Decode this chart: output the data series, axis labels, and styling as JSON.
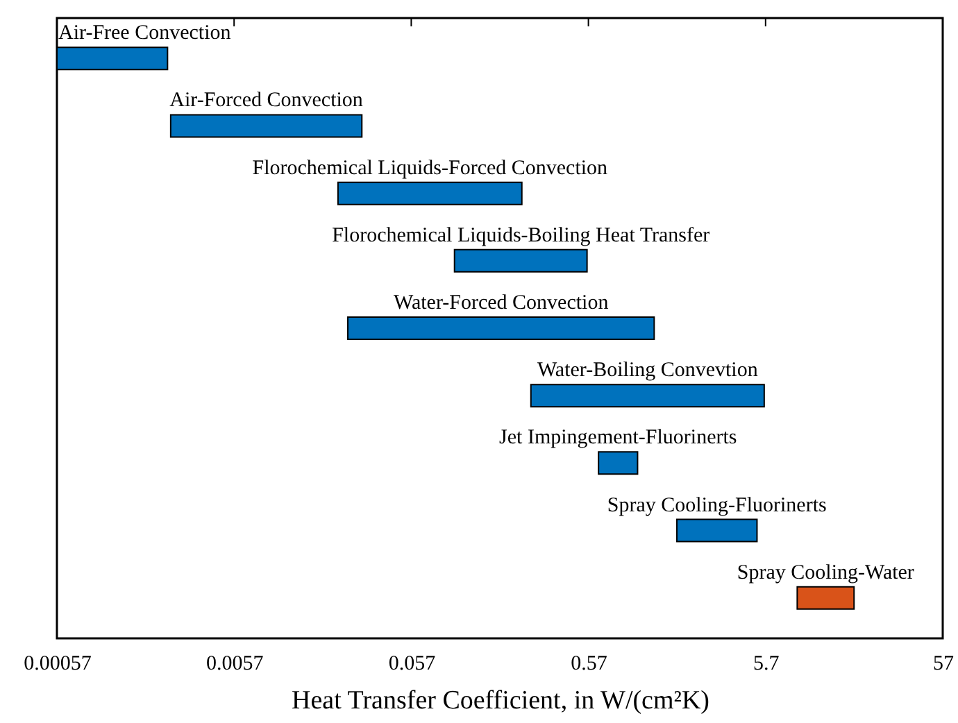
{
  "chart_data": {
    "type": "bar",
    "orientation": "horizontal",
    "xlabel": "Heat Transfer Coefficient, in W/(cm²K)",
    "categories": [
      "Air-Free Convection",
      "Air-Forced Convection",
      "Florochemical Liquids-Forced Convection",
      "Florochemical Liquids-Boiling Heat Transfer",
      "Water-Forced Convection",
      "Water-Boiling Convevtion",
      "Jet Impingement-Fluorinerts",
      "Spray Cooling-Fluorinerts",
      "Spray Cooling-Water"
    ],
    "base": [
      0.00057,
      0.0025,
      0.022,
      0.1,
      0.025,
      0.27,
      0.65,
      1.8,
      8.6
    ],
    "values": [
      0.00183,
      0.0275,
      0.218,
      0.46,
      1.315,
      5.33,
      0.43,
      3.3,
      9.4
    ],
    "colors": [
      "#0072bd",
      "#0072bd",
      "#0072bd",
      "#0072bd",
      "#0072bd",
      "#0072bd",
      "#0072bd",
      "#0072bd",
      "#d95319"
    ],
    "log": "x",
    "xlim": [
      0.00057,
      57
    ],
    "xticks": [
      0.00057,
      0.0057,
      0.057,
      0.57,
      5.7,
      57
    ],
    "tick_labels": "x",
    "grid": false
  }
}
